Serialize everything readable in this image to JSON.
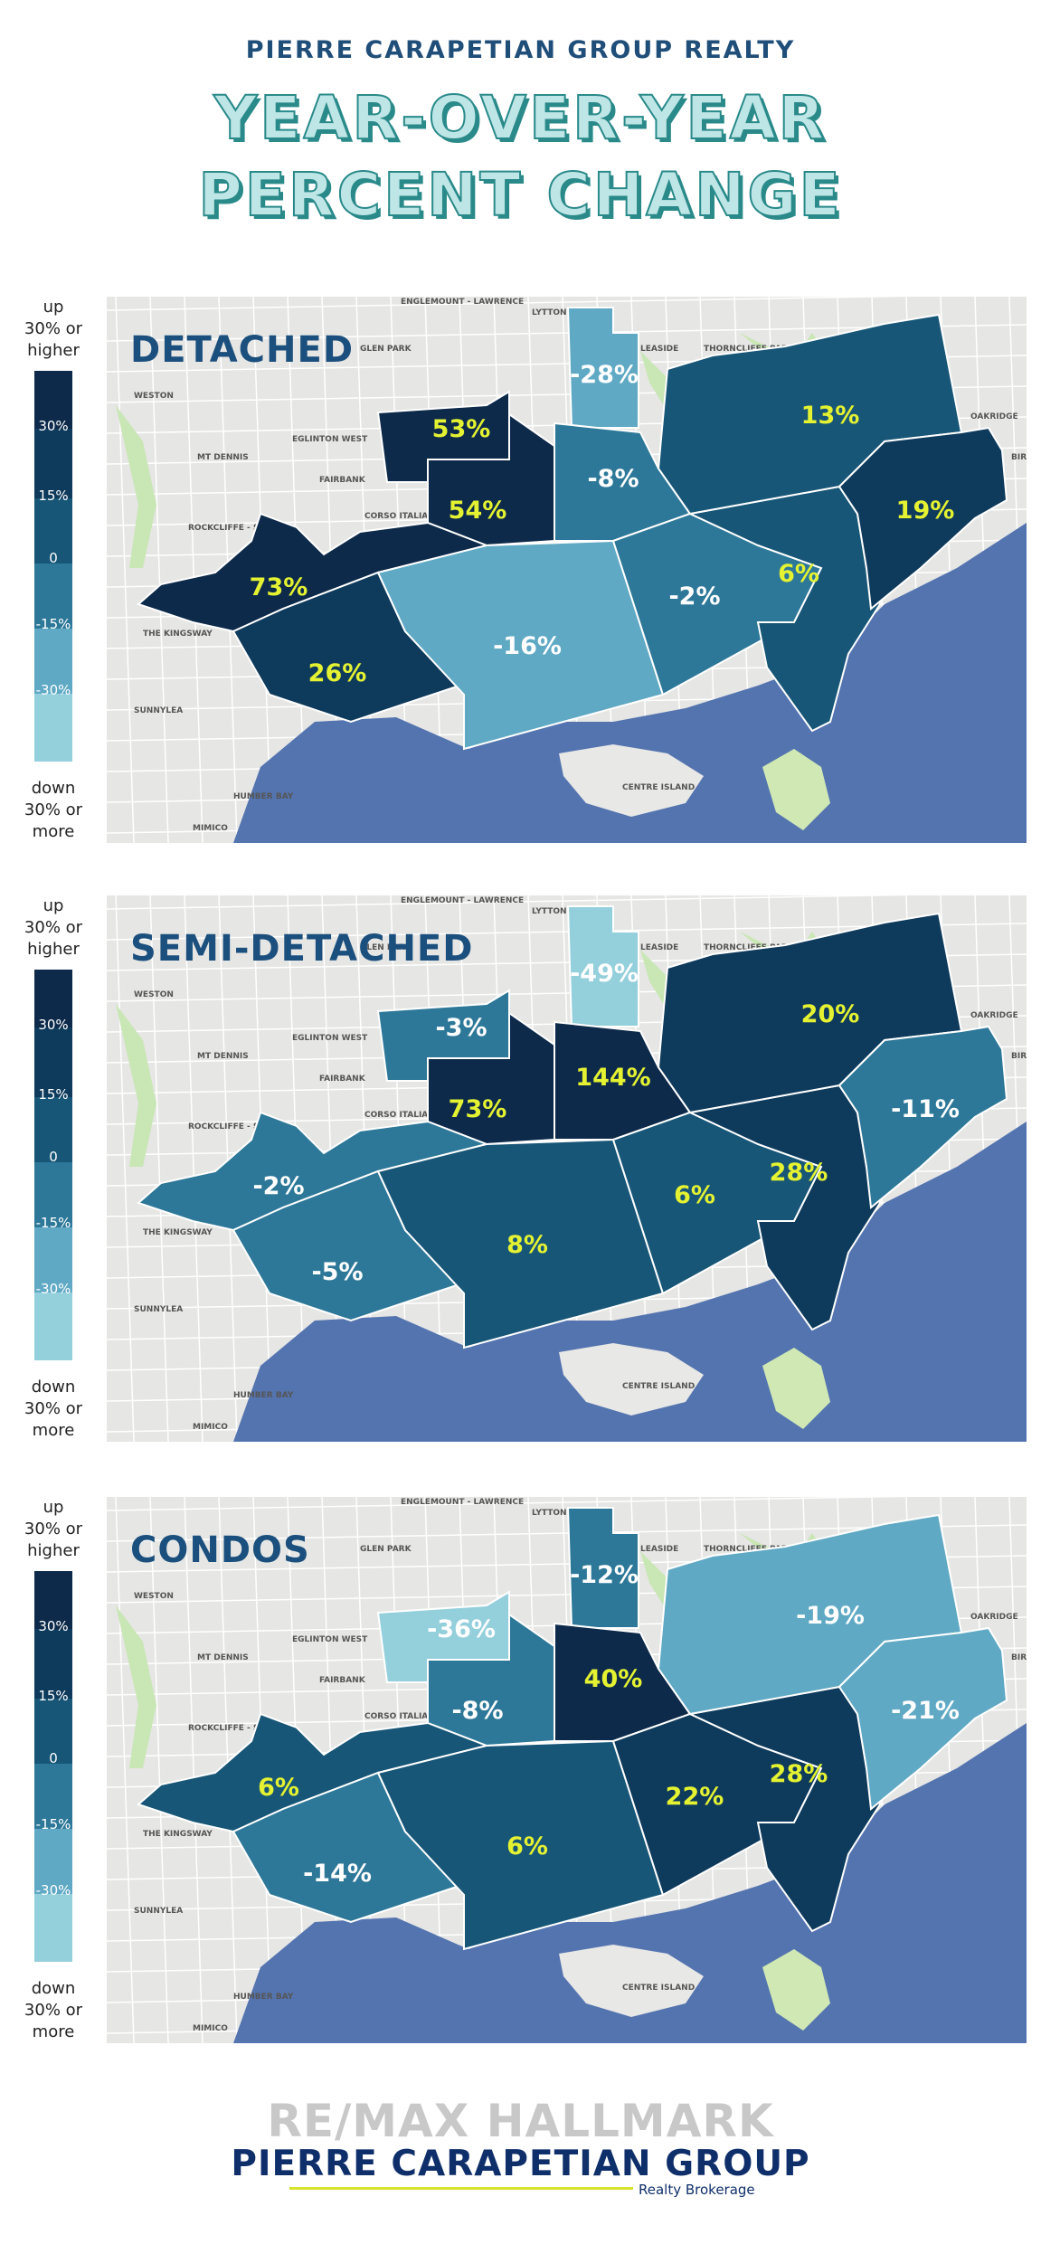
{
  "header": {
    "brand": "PIERRE CARAPETIAN GROUP REALTY",
    "title_line1": "YEAR-OVER-YEAR",
    "title_line2": "PERCENT CHANGE"
  },
  "legend": {
    "up_line1": "up",
    "up_line2": "30% or",
    "up_line3": "higher",
    "down_line1": "down",
    "down_line2": "30% or",
    "down_line3": "more",
    "ticks": [
      "30%",
      "15%",
      "0",
      "-15%",
      "-30%"
    ],
    "colors": [
      "#0d2a4a",
      "#0e3a5c",
      "#175677",
      "#2d7898",
      "#5fa9c4",
      "#94cfdc"
    ]
  },
  "map_places": [
    "ENGLEMOUNT - LAWRENCE",
    "LYTTON PARK",
    "GLEN PARK",
    "LEASIDE",
    "THORNCLIFFE PARK",
    "WESTON",
    "OAKRIDGE",
    "EGLINTON WEST",
    "FAIRBANK",
    "MT DENNIS",
    "CORSO ITALIA",
    "ROCKCLIFFE - SMYTHE",
    "THE KINGSWAY",
    "SUNNYLEA",
    "HUMBER BAY",
    "MIMICO",
    "CENTRE ISLAND",
    "BIRCH"
  ],
  "maps": [
    {
      "type": "DETACHED",
      "regions": [
        {
          "id": "nw",
          "value": "53%"
        },
        {
          "id": "ne",
          "value": "-28%"
        },
        {
          "id": "c",
          "value": "54%"
        },
        {
          "id": "lc",
          "value": "-8%"
        },
        {
          "id": "w",
          "value": "73%"
        },
        {
          "id": "sw",
          "value": "26%"
        },
        {
          "id": "s",
          "value": "-16%"
        },
        {
          "id": "sc",
          "value": "-2%"
        },
        {
          "id": "e",
          "value": "6%"
        },
        {
          "id": "ee",
          "value": "13%"
        },
        {
          "id": "far",
          "value": "19%"
        }
      ]
    },
    {
      "type": "SEMI-DETACHED",
      "regions": [
        {
          "id": "nw",
          "value": "-3%"
        },
        {
          "id": "ne",
          "value": "-49%"
        },
        {
          "id": "c",
          "value": "73%"
        },
        {
          "id": "lc",
          "value": "144%"
        },
        {
          "id": "w",
          "value": "-2%"
        },
        {
          "id": "sw",
          "value": "-5%"
        },
        {
          "id": "s",
          "value": "8%"
        },
        {
          "id": "sc",
          "value": "6%"
        },
        {
          "id": "e",
          "value": "28%"
        },
        {
          "id": "ee",
          "value": "20%"
        },
        {
          "id": "far",
          "value": "-11%"
        }
      ]
    },
    {
      "type": "CONDOS",
      "regions": [
        {
          "id": "nw",
          "value": "-36%"
        },
        {
          "id": "ne",
          "value": "-12%"
        },
        {
          "id": "c",
          "value": "-8%"
        },
        {
          "id": "lc",
          "value": "40%"
        },
        {
          "id": "w",
          "value": "6%"
        },
        {
          "id": "sw",
          "value": "-14%"
        },
        {
          "id": "s",
          "value": "6%"
        },
        {
          "id": "sc",
          "value": "22%"
        },
        {
          "id": "e",
          "value": "28%"
        },
        {
          "id": "ee",
          "value": "-19%"
        },
        {
          "id": "far",
          "value": "-21%"
        }
      ]
    }
  ],
  "footer": {
    "remax": "RE/MAX HALLMARK",
    "group": "PIERRE CARAPETIAN GROUP",
    "brokerage": "Realty Brokerage"
  }
}
